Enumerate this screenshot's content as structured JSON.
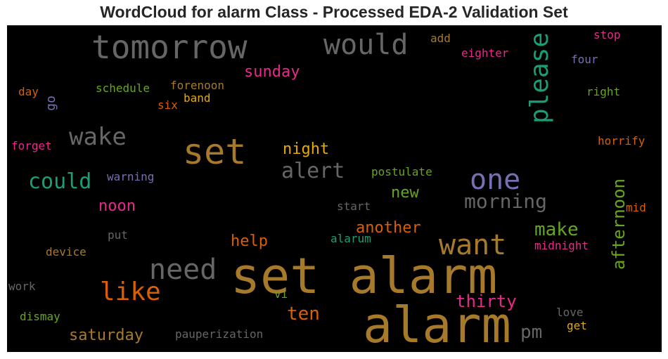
{
  "chart_data": {
    "type": "wordcloud",
    "title": "WordCloud for alarm Class - Processed EDA-2 Validation Set",
    "background": "#000000",
    "words": [
      {
        "text": "set alarm",
        "color": "#a67a2a"
      },
      {
        "text": "alarm",
        "color": "#a67a2a"
      },
      {
        "text": "set",
        "color": "#a67a2a"
      },
      {
        "text": "tomorrow",
        "color": "#666666"
      },
      {
        "text": "would",
        "color": "#666666"
      },
      {
        "text": "please",
        "color": "#1b9e77"
      },
      {
        "text": "one",
        "color": "#7570b3"
      },
      {
        "text": "want",
        "color": "#a67a2a"
      },
      {
        "text": "need",
        "color": "#666666"
      },
      {
        "text": "like",
        "color": "#d95f02"
      },
      {
        "text": "wake",
        "color": "#666666"
      },
      {
        "text": "could",
        "color": "#1b9e77"
      },
      {
        "text": "alert",
        "color": "#666666"
      },
      {
        "text": "morning",
        "color": "#666666"
      },
      {
        "text": "afternoon",
        "color": "#66a61e"
      },
      {
        "text": "make",
        "color": "#66a61e"
      },
      {
        "text": "sunday",
        "color": "#e7298a"
      },
      {
        "text": "night",
        "color": "#e6ab02"
      },
      {
        "text": "noon",
        "color": "#e7298a"
      },
      {
        "text": "new",
        "color": "#66a61e"
      },
      {
        "text": "another",
        "color": "#d95f02"
      },
      {
        "text": "help",
        "color": "#d95f02"
      },
      {
        "text": "thirty",
        "color": "#e7298a"
      },
      {
        "text": "ten",
        "color": "#d95f02"
      },
      {
        "text": "pm",
        "color": "#666666"
      },
      {
        "text": "saturday",
        "color": "#a67a2a"
      },
      {
        "text": "go",
        "color": "#7570b3"
      },
      {
        "text": "schedule",
        "color": "#66a61e"
      },
      {
        "text": "forenoon",
        "color": "#a67a2a"
      },
      {
        "text": "six",
        "color": "#d95f02"
      },
      {
        "text": "band",
        "color": "#e6ab02"
      },
      {
        "text": "day",
        "color": "#d95f02"
      },
      {
        "text": "forget",
        "color": "#e7298a"
      },
      {
        "text": "warning",
        "color": "#7570b3"
      },
      {
        "text": "postulate",
        "color": "#66a61e"
      },
      {
        "text": "start",
        "color": "#666666"
      },
      {
        "text": "put",
        "color": "#666666"
      },
      {
        "text": "alarum",
        "color": "#1b9e77"
      },
      {
        "text": "device",
        "color": "#a67a2a"
      },
      {
        "text": "work",
        "color": "#666666"
      },
      {
        "text": "vi",
        "color": "#66a61e"
      },
      {
        "text": "dismay",
        "color": "#66a61e"
      },
      {
        "text": "pauperization",
        "color": "#666666"
      },
      {
        "text": "midnight",
        "color": "#e7298a"
      },
      {
        "text": "love",
        "color": "#666666"
      },
      {
        "text": "get",
        "color": "#e6ab02"
      },
      {
        "text": "add",
        "color": "#a67a2a"
      },
      {
        "text": "eighter",
        "color": "#e7298a"
      },
      {
        "text": "stop",
        "color": "#e7298a"
      },
      {
        "text": "four",
        "color": "#7570b3"
      },
      {
        "text": "right",
        "color": "#66a61e"
      },
      {
        "text": "horrify",
        "color": "#d95f02"
      },
      {
        "text": "mid",
        "color": "#d95f02"
      }
    ]
  }
}
